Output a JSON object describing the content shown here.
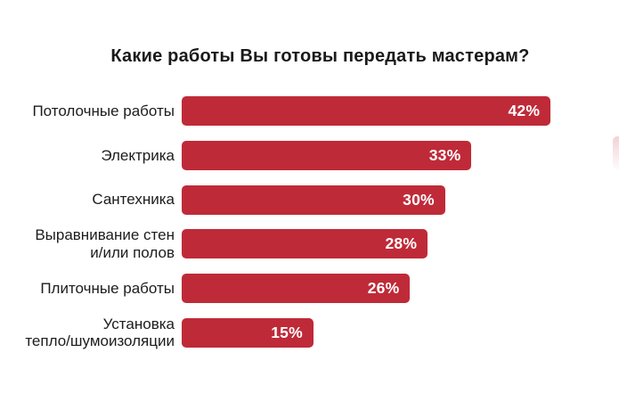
{
  "title": "Какие работы Вы готовы передать мастерам?",
  "chart_data": {
    "type": "bar",
    "orientation": "horizontal",
    "title": "Какие работы Вы готовы передать мастерам?",
    "categories": [
      "Потолочные работы",
      "Электрика",
      "Сантехника",
      "Выравнивание стен и/или полов",
      "Плиточные работы",
      "Установка тепло/шумоизоляции"
    ],
    "display_labels": [
      [
        "Потолочные работы"
      ],
      [
        "Электрика"
      ],
      [
        "Сантехника"
      ],
      [
        "Выравнивание стен",
        "и/или полов"
      ],
      [
        "Плиточные работы"
      ],
      [
        "Установка",
        "тепло/шумоизоляции"
      ]
    ],
    "values": [
      42,
      33,
      30,
      28,
      26,
      15
    ],
    "value_labels": [
      "42%",
      "33%",
      "30%",
      "28%",
      "26%",
      "15%"
    ],
    "unit": "%",
    "xlim": [
      0,
      42
    ],
    "grid": false,
    "legend": false,
    "bar_color": "#bf2a38",
    "value_label_color": "#ffffff",
    "category_label_color": "#1c1c1c",
    "title_color": "#1a1a1a",
    "background_color": "#ffffff"
  }
}
